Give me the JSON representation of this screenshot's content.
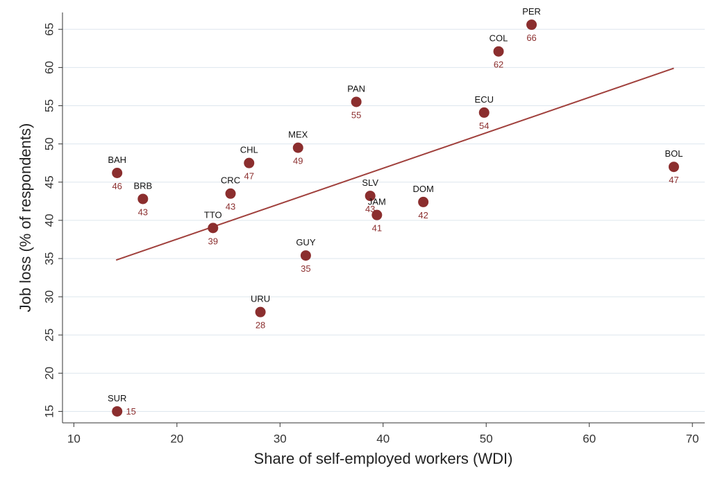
{
  "chart_data": {
    "type": "scatter",
    "x_label": "Share of self-employed workers (WDI)",
    "y_label": "Job loss (% of respondents)",
    "labels": [
      "PER",
      "COL",
      "ECU",
      "PAN",
      "MEX",
      "CHL",
      "BAH",
      "BOL",
      "CRC",
      "BRB",
      "SLV",
      "DOM",
      "JAM",
      "TTO",
      "GUY",
      "URU",
      "SUR"
    ],
    "x": [
      54.4,
      51.2,
      49.8,
      37.4,
      31.75,
      27.0,
      14.2,
      68.2,
      25.2,
      16.7,
      38.75,
      43.9,
      39.4,
      23.5,
      32.5,
      28.1,
      14.2
    ],
    "values": [
      65.6,
      62.1,
      54.1,
      55.5,
      49.5,
      47.5,
      46.2,
      47.0,
      43.5,
      42.8,
      43.2,
      42.4,
      40.7,
      39.0,
      35.4,
      28.0,
      15.0
    ],
    "value_labels": [
      "66",
      "62",
      "54",
      "55",
      "49",
      "47",
      "46",
      "47",
      "43",
      "43",
      "43",
      "42",
      "41",
      "39",
      "35",
      "28",
      "15"
    ],
    "color": "#8b2e2e",
    "fit_line": {
      "x": [
        14.1,
        68.2
      ],
      "values": [
        34.8,
        59.9
      ],
      "color": "#a0403c"
    },
    "xlim": [
      8.9,
      71.2
    ],
    "xticks": [
      10,
      20,
      30,
      40,
      50,
      60,
      70
    ],
    "ylim": [
      13.5,
      67.2
    ],
    "yticks": [
      15,
      20,
      25,
      30,
      35,
      40,
      45,
      50,
      55,
      60,
      65
    ],
    "grid": true
  }
}
